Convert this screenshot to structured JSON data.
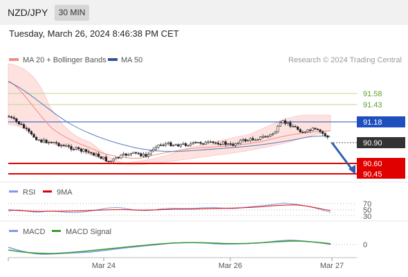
{
  "header": {
    "symbol": "NZD/JPY",
    "timeframe": "30 MIN"
  },
  "datetime": "Tuesday, March 26, 2024 8:46:38 PM CET",
  "legend": {
    "ma20": "MA 20 + Bollinger Bands",
    "ma50": "MA 50",
    "credit": "Research © 2024 Trading Central",
    "ma20_color": "#f28b82",
    "ma50_color": "#2f5597"
  },
  "levels": [
    {
      "value": "91.58",
      "color": "#5aa02c",
      "style": "thin"
    },
    {
      "value": "91.43",
      "color": "#5aa02c",
      "style": "thin"
    },
    {
      "value": "91.18",
      "color": "#1f4fbf",
      "style": "box"
    },
    {
      "value": "90.90",
      "color": "#333333",
      "style": "box"
    },
    {
      "value": "90.60",
      "color": "#e00000",
      "style": "box"
    },
    {
      "value": "90.45",
      "color": "#e00000",
      "style": "box"
    }
  ],
  "rsi": {
    "label": "RSI",
    "ma_label": "9MA",
    "levels": [
      "70",
      "50",
      "30"
    ],
    "rsi_color": "#7a9be8",
    "ma_color": "#e00000"
  },
  "macd": {
    "label": "MACD",
    "signal_label": "MACD Signal",
    "zero_label": "0",
    "macd_color": "#7a9be8",
    "signal_color": "#3a9a2a"
  },
  "xaxis": {
    "labels": [
      "Mar 24",
      "Mar 26",
      "Mar 27"
    ]
  },
  "forecast_arrow_color": "#2f5fb0"
}
